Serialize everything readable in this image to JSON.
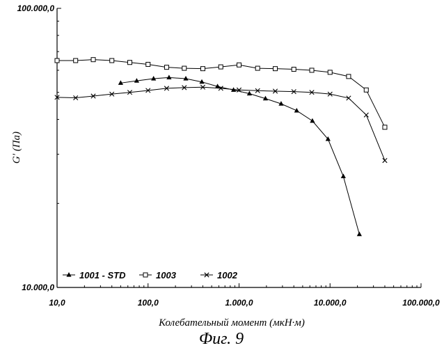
{
  "chart_data": {
    "type": "line",
    "xscale": "log",
    "yscale": "log",
    "xlim": [
      10,
      100000
    ],
    "ylim": [
      10000,
      100000
    ],
    "xlabel": "Колебательный момент (мкН·м)",
    "ylabel": "G' (Па)",
    "caption": "Фиг. 9",
    "xticks": [
      {
        "value": 10,
        "label": "10,0"
      },
      {
        "value": 100,
        "label": "100,0"
      },
      {
        "value": 1000,
        "label": "1.000,0"
      },
      {
        "value": 10000,
        "label": "10.000,0"
      },
      {
        "value": 100000,
        "label": "100.000,0"
      }
    ],
    "yticks": [
      {
        "value": 10000,
        "label": "10.000,0"
      },
      {
        "value": 100000,
        "label": "100.000,0"
      }
    ],
    "legend_position": "bottom-left",
    "series": [
      {
        "name": "1001 - STD",
        "marker": "triangle",
        "points": [
          [
            50,
            54000
          ],
          [
            75,
            55000
          ],
          [
            115,
            56000
          ],
          [
            170,
            56500
          ],
          [
            260,
            56000
          ],
          [
            390,
            54500
          ],
          [
            580,
            52500
          ],
          [
            870,
            51000
          ],
          [
            1300,
            49500
          ],
          [
            1950,
            47500
          ],
          [
            2900,
            45500
          ],
          [
            4300,
            43000
          ],
          [
            6400,
            39500
          ],
          [
            9500,
            34000
          ],
          [
            14000,
            25000
          ],
          [
            21000,
            15500
          ]
        ]
      },
      {
        "name": "1003",
        "marker": "square",
        "points": [
          [
            10,
            65000
          ],
          [
            16,
            65000
          ],
          [
            25,
            65500
          ],
          [
            40,
            65000
          ],
          [
            63,
            64000
          ],
          [
            100,
            63000
          ],
          [
            160,
            61500
          ],
          [
            250,
            61000
          ],
          [
            400,
            60800
          ],
          [
            630,
            61700
          ],
          [
            1000,
            62700
          ],
          [
            1600,
            61000
          ],
          [
            2500,
            60800
          ],
          [
            4000,
            60500
          ],
          [
            6300,
            60000
          ],
          [
            10000,
            59000
          ],
          [
            16000,
            57000
          ],
          [
            25000,
            51000
          ],
          [
            40000,
            37500
          ]
        ]
      },
      {
        "name": "1002",
        "marker": "x",
        "points": [
          [
            10,
            48000
          ],
          [
            16,
            47800
          ],
          [
            25,
            48500
          ],
          [
            40,
            49300
          ],
          [
            63,
            50000
          ],
          [
            100,
            50800
          ],
          [
            160,
            51700
          ],
          [
            250,
            52000
          ],
          [
            400,
            52200
          ],
          [
            630,
            51700
          ],
          [
            1000,
            51000
          ],
          [
            1600,
            50700
          ],
          [
            2500,
            50500
          ],
          [
            4000,
            50300
          ],
          [
            6300,
            50000
          ],
          [
            10000,
            49300
          ],
          [
            16000,
            47700
          ],
          [
            25000,
            41500
          ],
          [
            40000,
            28500
          ]
        ]
      }
    ]
  }
}
